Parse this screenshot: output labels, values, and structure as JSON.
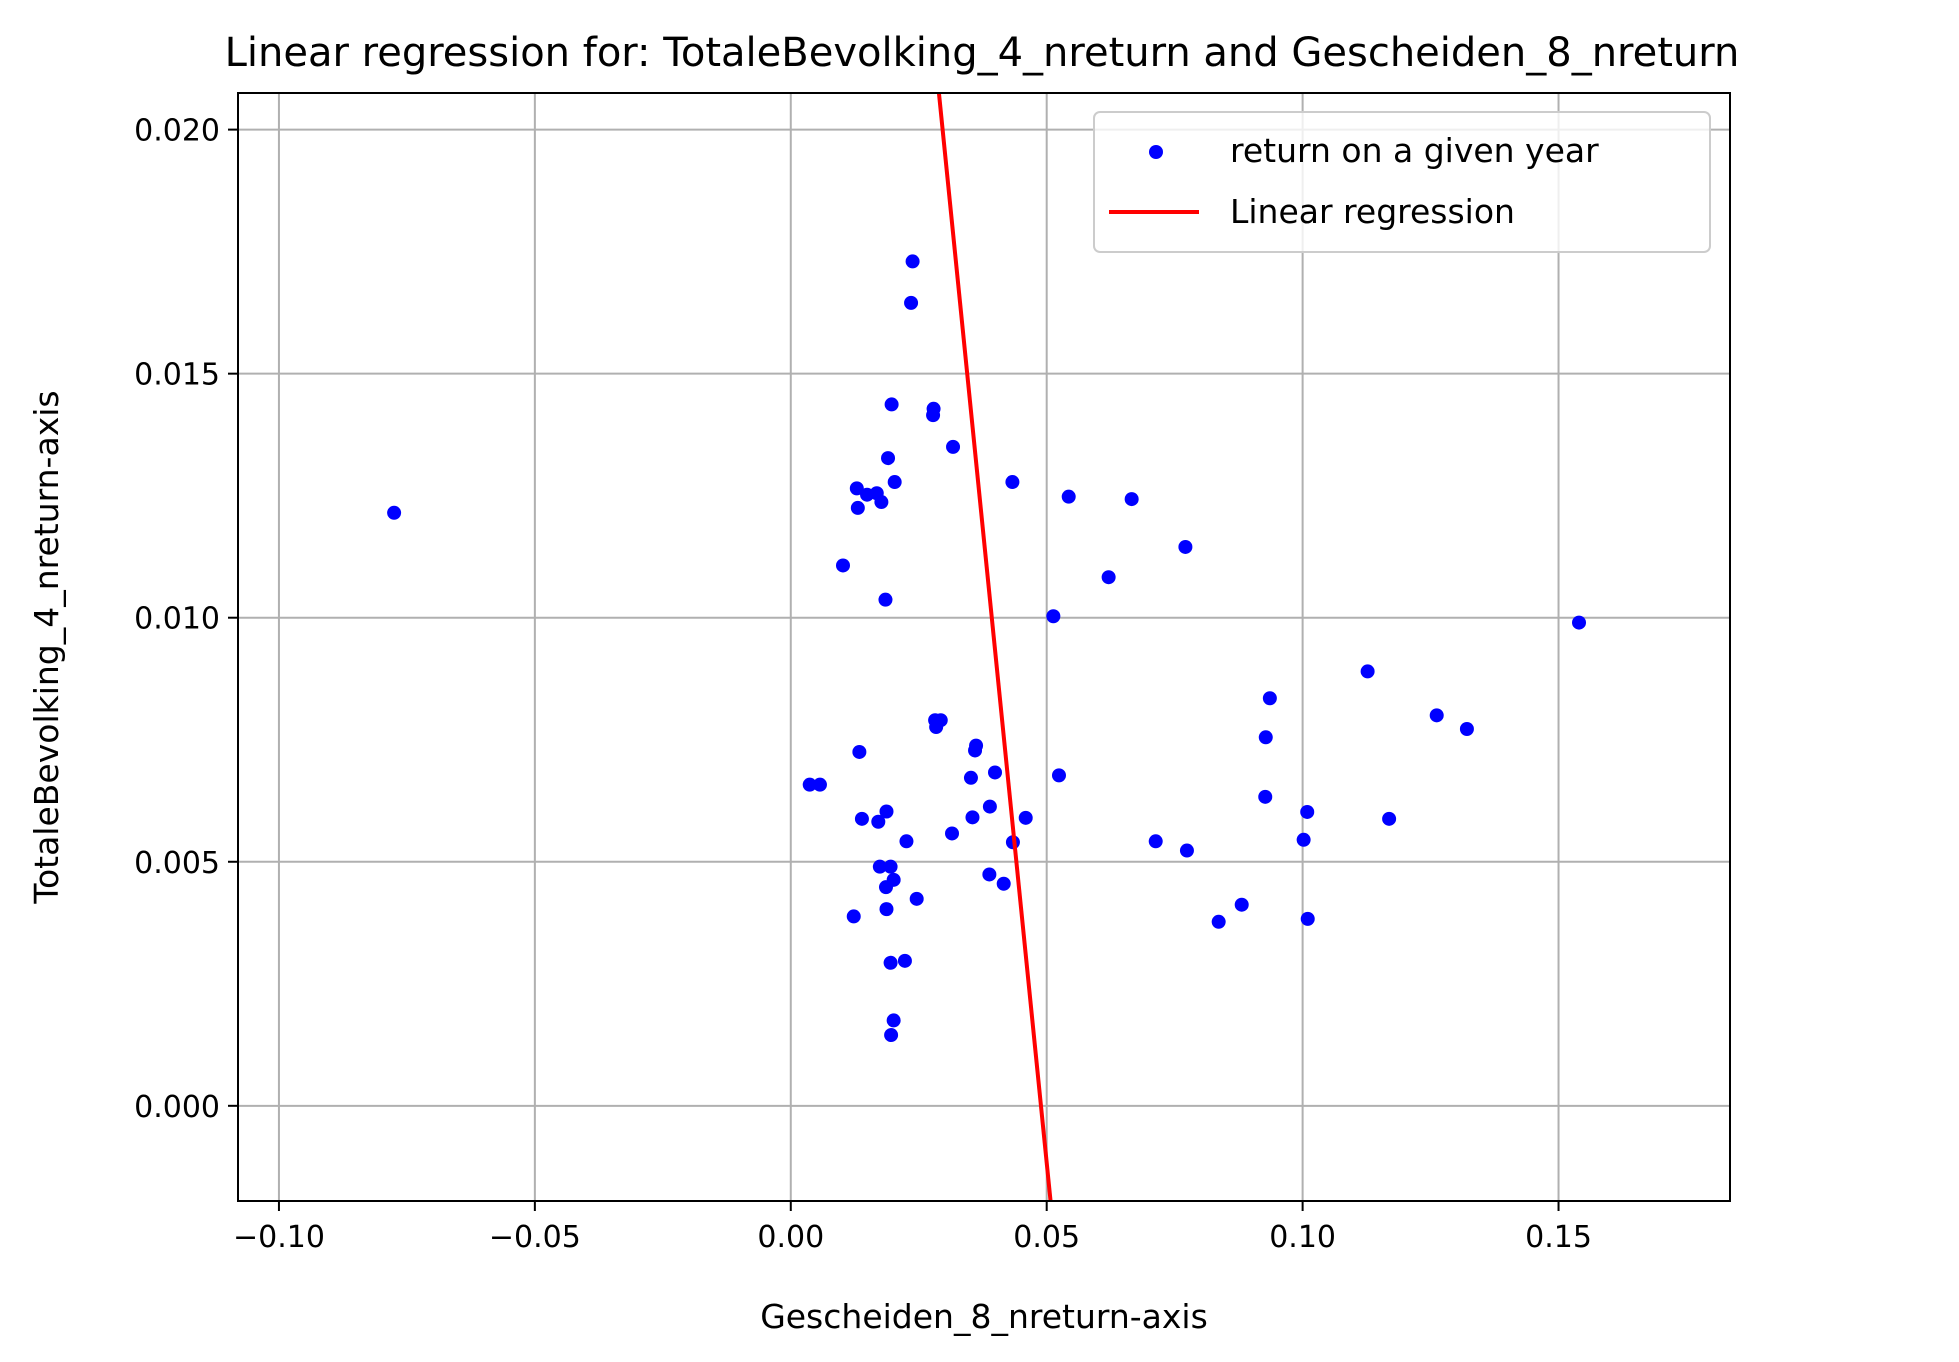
{
  "chart_data": {
    "type": "scatter",
    "title": "Linear regression for: TotaleBevolking_4_nreturn and Gescheiden_8_nreturn",
    "xlabel": "Gescheiden_8_nreturn-axis",
    "ylabel": "TotaleBevolking_4_nreturn-axis",
    "xlim": [
      -0.108,
      0.1835
    ],
    "ylim": [
      -0.00195,
      0.02075
    ],
    "xticks": [
      -0.1,
      -0.05,
      0.0,
      0.05,
      0.1,
      0.15
    ],
    "xtick_labels": [
      "−0.10",
      "−0.05",
      "0.00",
      "0.05",
      "0.10",
      "0.15"
    ],
    "yticks": [
      0.0,
      0.005,
      0.01,
      0.015,
      0.02
    ],
    "ytick_labels": [
      "0.000",
      "0.005",
      "0.010",
      "0.015",
      "0.020"
    ],
    "grid": true,
    "legend_position": "top-right",
    "colors": {
      "scatter": "#0000ff",
      "regression": "#ff0000",
      "grid": "#b0b0b0"
    },
    "series": [
      {
        "name": "return on a given year",
        "kind": "scatter",
        "points": [
          [
            -0.0775,
            0.01215
          ],
          [
            0.0238,
            0.0173
          ],
          [
            0.0235,
            0.01645
          ],
          [
            0.0197,
            0.01437
          ],
          [
            0.0279,
            0.01428
          ],
          [
            0.0278,
            0.01415
          ],
          [
            0.0317,
            0.0135
          ],
          [
            0.019,
            0.01327
          ],
          [
            0.0203,
            0.01278
          ],
          [
            0.0129,
            0.01265
          ],
          [
            0.0149,
            0.01252
          ],
          [
            0.0168,
            0.01255
          ],
          [
            0.0177,
            0.01237
          ],
          [
            0.0131,
            0.01225
          ],
          [
            0.0433,
            0.01278
          ],
          [
            0.0543,
            0.01248
          ],
          [
            0.0666,
            0.01243
          ],
          [
            0.0771,
            0.01145
          ],
          [
            0.0102,
            0.01107
          ],
          [
            0.0621,
            0.01083
          ],
          [
            0.0185,
            0.01037
          ],
          [
            0.0513,
            0.01003
          ],
          [
            0.154,
            0.0099
          ],
          [
            0.1127,
            0.0089
          ],
          [
            0.0936,
            0.00835
          ],
          [
            0.1262,
            0.008
          ],
          [
            0.1321,
            0.00772
          ],
          [
            0.0928,
            0.00755
          ],
          [
            0.0282,
            0.0079
          ],
          [
            0.0293,
            0.0079
          ],
          [
            0.0284,
            0.00776
          ],
          [
            0.0362,
            0.00738
          ],
          [
            0.036,
            0.00728
          ],
          [
            0.0134,
            0.00725
          ],
          [
            0.0399,
            0.00683
          ],
          [
            0.0524,
            0.00677
          ],
          [
            0.0352,
            0.00672
          ],
          [
            0.0037,
            0.00658
          ],
          [
            0.0057,
            0.00658
          ],
          [
            0.0927,
            0.00633
          ],
          [
            0.0389,
            0.00613
          ],
          [
            0.1009,
            0.00602
          ],
          [
            0.0187,
            0.00603
          ],
          [
            0.0139,
            0.00588
          ],
          [
            0.0171,
            0.00582
          ],
          [
            0.0355,
            0.00591
          ],
          [
            0.0459,
            0.0059
          ],
          [
            0.1169,
            0.00588
          ],
          [
            0.0315,
            0.00558
          ],
          [
            0.0226,
            0.00542
          ],
          [
            0.0434,
            0.0054
          ],
          [
            0.0713,
            0.00542
          ],
          [
            0.0774,
            0.00523
          ],
          [
            0.1002,
            0.00545
          ],
          [
            0.0174,
            0.0049
          ],
          [
            0.0195,
            0.0049
          ],
          [
            0.0388,
            0.00474
          ],
          [
            0.0201,
            0.00463
          ],
          [
            0.0186,
            0.00448
          ],
          [
            0.0416,
            0.00455
          ],
          [
            0.0246,
            0.00424
          ],
          [
            0.0187,
            0.00403
          ],
          [
            0.0123,
            0.00388
          ],
          [
            0.0836,
            0.00377
          ],
          [
            0.0881,
            0.00412
          ],
          [
            0.101,
            0.00383
          ],
          [
            0.0195,
            0.00293
          ],
          [
            0.0223,
            0.00297
          ],
          [
            0.0201,
            0.00175
          ],
          [
            0.0196,
            0.00145
          ]
        ]
      },
      {
        "name": "Linear regression",
        "kind": "line",
        "points": [
          [
            0.0288,
            0.0209
          ],
          [
            0.0508,
            -0.002
          ]
        ]
      }
    ]
  }
}
